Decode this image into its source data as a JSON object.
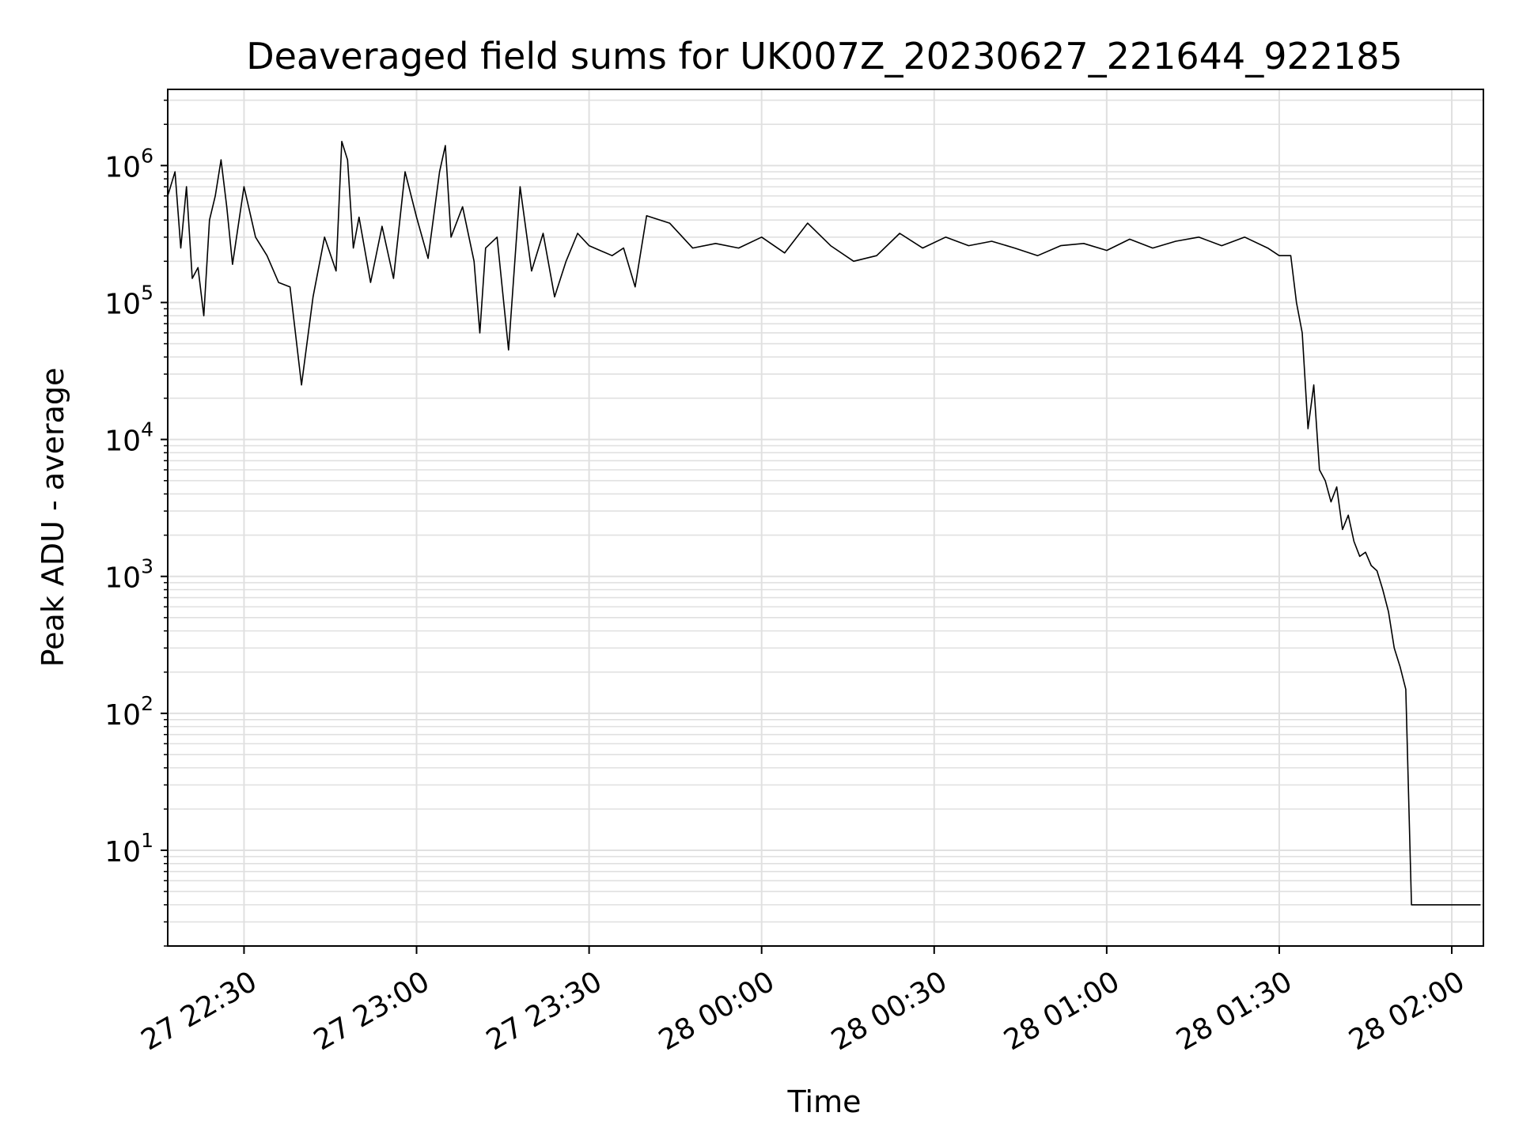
{
  "chart_data": {
    "type": "line",
    "title": "Deaveraged field sums for UK007Z_20230627_221644_922185",
    "xlabel": "Time",
    "ylabel": "Peak ADU - average",
    "yscale": "log",
    "ylim": [
      2,
      3600000
    ],
    "xlim": [
      "2023-06-27 22:16:44",
      "2023-06-28 02:05:30"
    ],
    "grid": true,
    "line_color": "#000000",
    "grid_color": "#e0e0e0",
    "x_ticks": [
      {
        "value": "2023-06-27 22:30",
        "label": "27 22:30"
      },
      {
        "value": "2023-06-27 23:00",
        "label": "27 23:00"
      },
      {
        "value": "2023-06-27 23:30",
        "label": "27 23:30"
      },
      {
        "value": "2023-06-28 00:00",
        "label": "28 00:00"
      },
      {
        "value": "2023-06-28 00:30",
        "label": "28 00:30"
      },
      {
        "value": "2023-06-28 01:00",
        "label": "28 01:00"
      },
      {
        "value": "2023-06-28 01:30",
        "label": "28 01:30"
      },
      {
        "value": "2023-06-28 02:00",
        "label": "28 02:00"
      }
    ],
    "y_ticks": [
      {
        "value": 10,
        "base": "10",
        "exp": "1"
      },
      {
        "value": 100,
        "base": "10",
        "exp": "2"
      },
      {
        "value": 1000,
        "base": "10",
        "exp": "3"
      },
      {
        "value": 10000,
        "base": "10",
        "exp": "4"
      },
      {
        "value": 100000,
        "base": "10",
        "exp": "5"
      },
      {
        "value": 1000000,
        "base": "10",
        "exp": "6"
      }
    ],
    "series": [
      {
        "x": [
          "2023-06-27 22:16:44",
          "2023-06-27 22:18",
          "2023-06-27 22:19",
          "2023-06-27 22:20",
          "2023-06-27 22:21",
          "2023-06-27 22:22",
          "2023-06-27 22:23",
          "2023-06-27 22:24",
          "2023-06-27 22:25",
          "2023-06-27 22:26",
          "2023-06-27 22:27",
          "2023-06-27 22:28",
          "2023-06-27 22:30",
          "2023-06-27 22:32",
          "2023-06-27 22:34",
          "2023-06-27 22:36",
          "2023-06-27 22:38",
          "2023-06-27 22:40",
          "2023-06-27 22:42",
          "2023-06-27 22:44",
          "2023-06-27 22:46",
          "2023-06-27 22:47",
          "2023-06-27 22:48",
          "2023-06-27 22:49",
          "2023-06-27 22:50",
          "2023-06-27 22:52",
          "2023-06-27 22:54",
          "2023-06-27 22:56",
          "2023-06-27 22:58",
          "2023-06-27 23:00",
          "2023-06-27 23:02",
          "2023-06-27 23:04",
          "2023-06-27 23:05",
          "2023-06-27 23:06",
          "2023-06-27 23:08",
          "2023-06-27 23:10",
          "2023-06-27 23:11",
          "2023-06-27 23:12",
          "2023-06-27 23:14",
          "2023-06-27 23:16",
          "2023-06-27 23:18",
          "2023-06-27 23:20",
          "2023-06-27 23:22",
          "2023-06-27 23:24",
          "2023-06-27 23:26",
          "2023-06-27 23:28",
          "2023-06-27 23:30",
          "2023-06-27 23:34",
          "2023-06-27 23:36",
          "2023-06-27 23:38",
          "2023-06-27 23:40",
          "2023-06-27 23:44",
          "2023-06-27 23:48",
          "2023-06-27 23:52",
          "2023-06-27 23:56",
          "2023-06-28 00:00",
          "2023-06-28 00:04",
          "2023-06-28 00:08",
          "2023-06-28 00:12",
          "2023-06-28 00:16",
          "2023-06-28 00:20",
          "2023-06-28 00:24",
          "2023-06-28 00:28",
          "2023-06-28 00:32",
          "2023-06-28 00:36",
          "2023-06-28 00:40",
          "2023-06-28 00:44",
          "2023-06-28 00:48",
          "2023-06-28 00:52",
          "2023-06-28 00:56",
          "2023-06-28 01:00",
          "2023-06-28 01:04",
          "2023-06-28 01:08",
          "2023-06-28 01:12",
          "2023-06-28 01:16",
          "2023-06-28 01:20",
          "2023-06-28 01:24",
          "2023-06-28 01:28",
          "2023-06-28 01:30",
          "2023-06-28 01:32",
          "2023-06-28 01:33",
          "2023-06-28 01:34",
          "2023-06-28 01:35",
          "2023-06-28 01:36",
          "2023-06-28 01:37",
          "2023-06-28 01:38",
          "2023-06-28 01:39",
          "2023-06-28 01:40",
          "2023-06-28 01:41",
          "2023-06-28 01:42",
          "2023-06-28 01:43",
          "2023-06-28 01:44",
          "2023-06-28 01:45",
          "2023-06-28 01:46",
          "2023-06-28 01:47",
          "2023-06-28 01:48",
          "2023-06-28 01:49",
          "2023-06-28 01:50",
          "2023-06-28 01:51",
          "2023-06-28 01:52",
          "2023-06-28 01:53",
          "2023-06-28 01:54",
          "2023-06-28 01:55",
          "2023-06-28 01:56",
          "2023-06-28 01:58",
          "2023-06-28 02:00",
          "2023-06-28 02:02",
          "2023-06-28 02:04",
          "2023-06-28 02:05"
        ],
        "y": [
          600000,
          900000,
          250000,
          700000,
          150000,
          180000,
          80000,
          400000,
          600000,
          1100000,
          500000,
          190000,
          700000,
          300000,
          220000,
          140000,
          130000,
          25000,
          110000,
          300000,
          170000,
          1500000,
          1100000,
          250000,
          420000,
          140000,
          360000,
          150000,
          900000,
          420000,
          210000,
          900000,
          1400000,
          300000,
          500000,
          200000,
          60000,
          250000,
          300000,
          45000,
          700000,
          170000,
          320000,
          110000,
          200000,
          320000,
          260000,
          220000,
          250000,
          130000,
          430000,
          380000,
          250000,
          270000,
          250000,
          300000,
          230000,
          380000,
          260000,
          200000,
          220000,
          320000,
          250000,
          300000,
          260000,
          280000,
          250000,
          220000,
          260000,
          270000,
          240000,
          290000,
          250000,
          280000,
          300000,
          260000,
          300000,
          250000,
          220000,
          220000,
          100000,
          60000,
          12000,
          25000,
          6000,
          5000,
          3500,
          4500,
          2200,
          2800,
          1800,
          1400,
          1500,
          1200,
          1100,
          800,
          550,
          300,
          220,
          150,
          4,
          4,
          4,
          4,
          4,
          4,
          4,
          4,
          4
        ]
      }
    ]
  }
}
